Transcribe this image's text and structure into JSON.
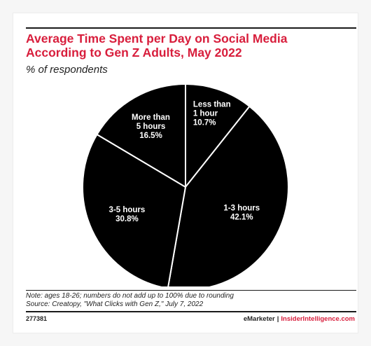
{
  "chart_data": {
    "type": "pie",
    "title": [
      "Average Time Spent per Day on Social Media",
      "According to Gen Z Adults, May 2022"
    ],
    "subtitle": "% of respondents",
    "slices": [
      {
        "label_lines": [
          "Less than",
          "1 hour"
        ],
        "value": 10.7,
        "value_label": "10.7%"
      },
      {
        "label_lines": [
          "1-3 hours"
        ],
        "value": 42.1,
        "value_label": "42.1%"
      },
      {
        "label_lines": [
          "3-5 hours"
        ],
        "value": 30.8,
        "value_label": "30.8%"
      },
      {
        "label_lines": [
          "More than",
          "5 hours"
        ],
        "value": 16.5,
        "value_label": "16.5%"
      }
    ],
    "legend": "none",
    "colors": {
      "slice_fill": "#000000",
      "slice_stroke": "#ffffff",
      "label_text": "#ffffff"
    }
  },
  "notes": [
    "Note: ages 18-26; numbers do not add up to 100% due to rounding",
    "Source: Creatopy, \"What Clicks with Gen Z,\" July 7, 2022"
  ],
  "footer": {
    "chart_id": "277381",
    "brand_left": "eMarketer",
    "separator": "|",
    "brand_right": "InsiderIntelligence.com"
  },
  "colors": {
    "accent": "#d81e3c",
    "text": "#222222"
  }
}
